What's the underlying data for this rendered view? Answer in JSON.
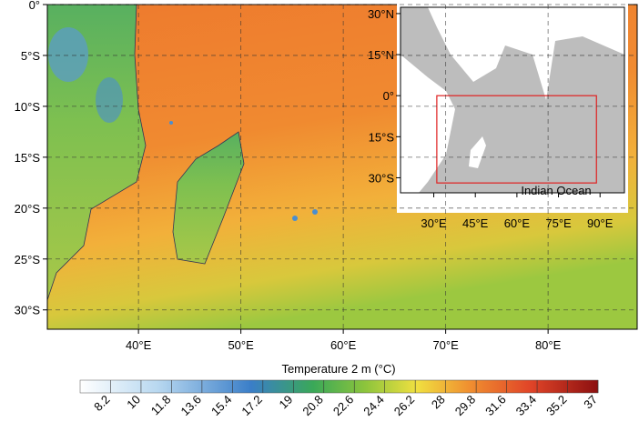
{
  "map": {
    "lonlim": [
      31.1,
      88.7
    ],
    "latlim": [
      0,
      -31.9
    ],
    "lon_ticks": [
      {
        "value": 40,
        "label": "40°E"
      },
      {
        "value": 50,
        "label": "50°E"
      },
      {
        "value": 60,
        "label": "60°E"
      },
      {
        "value": 70,
        "label": "70°E"
      },
      {
        "value": 80,
        "label": "80°E"
      }
    ],
    "lat_ticks": [
      {
        "value": 0,
        "label": "0°"
      },
      {
        "value": -5,
        "label": "5°S"
      },
      {
        "value": -10,
        "label": "10°S"
      },
      {
        "value": -15,
        "label": "15°S"
      },
      {
        "value": -20,
        "label": "20°S"
      },
      {
        "value": -25,
        "label": "25°S"
      },
      {
        "value": -30,
        "label": "30°S"
      }
    ]
  },
  "inset": {
    "label": "Indian Ocean",
    "lonlim": [
      18,
      98.8
    ],
    "latlim": [
      32.3,
      -35.5
    ],
    "lon_ticks": [
      {
        "value": 30,
        "label": "30°E"
      },
      {
        "value": 45,
        "label": "45°E"
      },
      {
        "value": 60,
        "label": "60°E"
      },
      {
        "value": 75,
        "label": "75°E"
      },
      {
        "value": 90,
        "label": "90°E"
      }
    ],
    "lat_ticks": [
      {
        "value": 30,
        "label": "30°N"
      },
      {
        "value": 15,
        "label": "15°N"
      },
      {
        "value": 0,
        "label": "0°"
      },
      {
        "value": -15,
        "label": "15°S"
      },
      {
        "value": -30,
        "label": "30°S"
      }
    ]
  },
  "colorbar": {
    "title": "Temperature 2 m (°C)",
    "range": [
      6.4,
      37
    ],
    "ticks": [
      8.2,
      10,
      11.8,
      13.6,
      15.4,
      17.2,
      19,
      20.8,
      22.6,
      24.4,
      26.2,
      28,
      29.8,
      31.6,
      33.4,
      35.2,
      37
    ]
  }
}
